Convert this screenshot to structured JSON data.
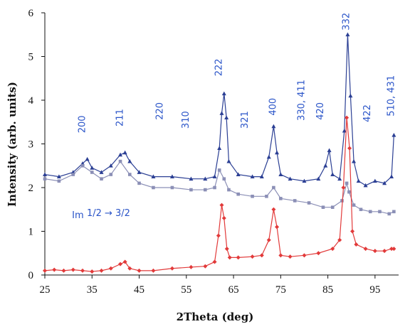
{
  "chart_data": {
    "type": "line",
    "title": "",
    "xlabel": "2Theta (deg)",
    "ylabel": "Intensity (arb. units)",
    "xlim": [
      25,
      100
    ],
    "ylim": [
      0,
      6
    ],
    "xticks": [
      25,
      35,
      45,
      55,
      65,
      75,
      85,
      95
    ],
    "yticks": [
      0,
      1,
      2,
      3,
      4,
      5,
      6
    ],
    "grid": false,
    "legend": "none",
    "series": [
      {
        "color": "#2b3f94",
        "marker": "triangle",
        "x": [
          25,
          28,
          31,
          33,
          34,
          35,
          37,
          39,
          41,
          42,
          43,
          45,
          48,
          52,
          56,
          59,
          61,
          62,
          62.5,
          63,
          63.5,
          64,
          66,
          69,
          71,
          72.5,
          73.5,
          74.2,
          75,
          77,
          80,
          83,
          84.5,
          85.3,
          86,
          87.5,
          88.5,
          89.2,
          89.8,
          90.5,
          91.5,
          93,
          95,
          97,
          98.5,
          99
        ],
        "y": [
          2.3,
          2.25,
          2.35,
          2.55,
          2.65,
          2.45,
          2.35,
          2.5,
          2.75,
          2.8,
          2.6,
          2.35,
          2.25,
          2.25,
          2.2,
          2.2,
          2.25,
          2.9,
          3.7,
          4.15,
          3.6,
          2.6,
          2.3,
          2.25,
          2.25,
          2.7,
          3.4,
          2.8,
          2.3,
          2.2,
          2.15,
          2.2,
          2.5,
          2.85,
          2.3,
          2.2,
          3.3,
          5.5,
          4.1,
          2.6,
          2.15,
          2.05,
          2.15,
          2.1,
          2.25,
          3.2
        ]
      },
      {
        "color": "#8b8fb6",
        "marker": "square",
        "x": [
          25,
          28,
          31,
          33,
          35,
          37,
          39,
          41,
          43,
          45,
          48,
          52,
          56,
          59,
          61,
          62,
          63,
          64,
          66,
          69,
          72,
          73.5,
          75,
          78,
          81,
          84,
          86,
          88,
          89,
          89.5,
          90.5,
          92,
          94,
          96,
          98,
          99
        ],
        "y": [
          2.2,
          2.15,
          2.3,
          2.5,
          2.35,
          2.2,
          2.3,
          2.6,
          2.3,
          2.1,
          2.0,
          2.0,
          1.95,
          1.95,
          2.0,
          2.4,
          2.2,
          1.95,
          1.85,
          1.8,
          1.8,
          2.0,
          1.75,
          1.7,
          1.65,
          1.55,
          1.55,
          1.7,
          2.1,
          1.9,
          1.6,
          1.5,
          1.45,
          1.45,
          1.4,
          1.45
        ]
      },
      {
        "color": "#e23a3a",
        "marker": "diamond",
        "x": [
          25,
          27,
          29,
          31,
          33,
          35,
          37,
          39,
          41,
          42,
          43,
          45,
          48,
          52,
          56,
          59,
          61,
          61.8,
          62.5,
          63,
          63.6,
          64.2,
          66,
          69,
          71,
          72.5,
          73.5,
          74.2,
          75,
          77,
          80,
          83,
          86,
          87.5,
          88.3,
          89,
          89.6,
          90.2,
          91,
          93,
          95,
          97,
          98.5,
          99
        ],
        "y": [
          0.1,
          0.12,
          0.1,
          0.12,
          0.1,
          0.08,
          0.1,
          0.15,
          0.25,
          0.3,
          0.15,
          0.1,
          0.1,
          0.15,
          0.18,
          0.2,
          0.3,
          0.9,
          1.6,
          1.3,
          0.6,
          0.4,
          0.4,
          0.42,
          0.45,
          0.8,
          1.5,
          1.1,
          0.45,
          0.42,
          0.45,
          0.5,
          0.6,
          0.8,
          2.0,
          3.6,
          2.9,
          1.0,
          0.7,
          0.6,
          0.55,
          0.55,
          0.6,
          0.6
        ]
      }
    ],
    "annotations": [
      {
        "text": "200",
        "x": 33.5,
        "y": 3.45
      },
      {
        "text": "211",
        "x": 41.5,
        "y": 3.6
      },
      {
        "text": "220",
        "x": 50,
        "y": 3.75
      },
      {
        "text": "310",
        "x": 55.5,
        "y": 3.55
      },
      {
        "text": "222",
        "x": 62.5,
        "y": 4.75
      },
      {
        "text": "321",
        "x": 68,
        "y": 3.55
      },
      {
        "text": "400",
        "x": 74,
        "y": 3.85
      },
      {
        "text": "330, 411",
        "x": 80,
        "y": 4.0
      },
      {
        "text": "420",
        "x": 84,
        "y": 3.75
      },
      {
        "text": "332",
        "x": 89.5,
        "y": 5.8
      },
      {
        "text": "422",
        "x": 94,
        "y": 3.7
      },
      {
        "text": "510, 431",
        "x": 99,
        "y": 4.1
      },
      {
        "text": "Im",
        "x": 32,
        "y": 1.3
      },
      {
        "text": "1/2 → 3/2",
        "x": 38.5,
        "y": 1.35
      }
    ]
  }
}
